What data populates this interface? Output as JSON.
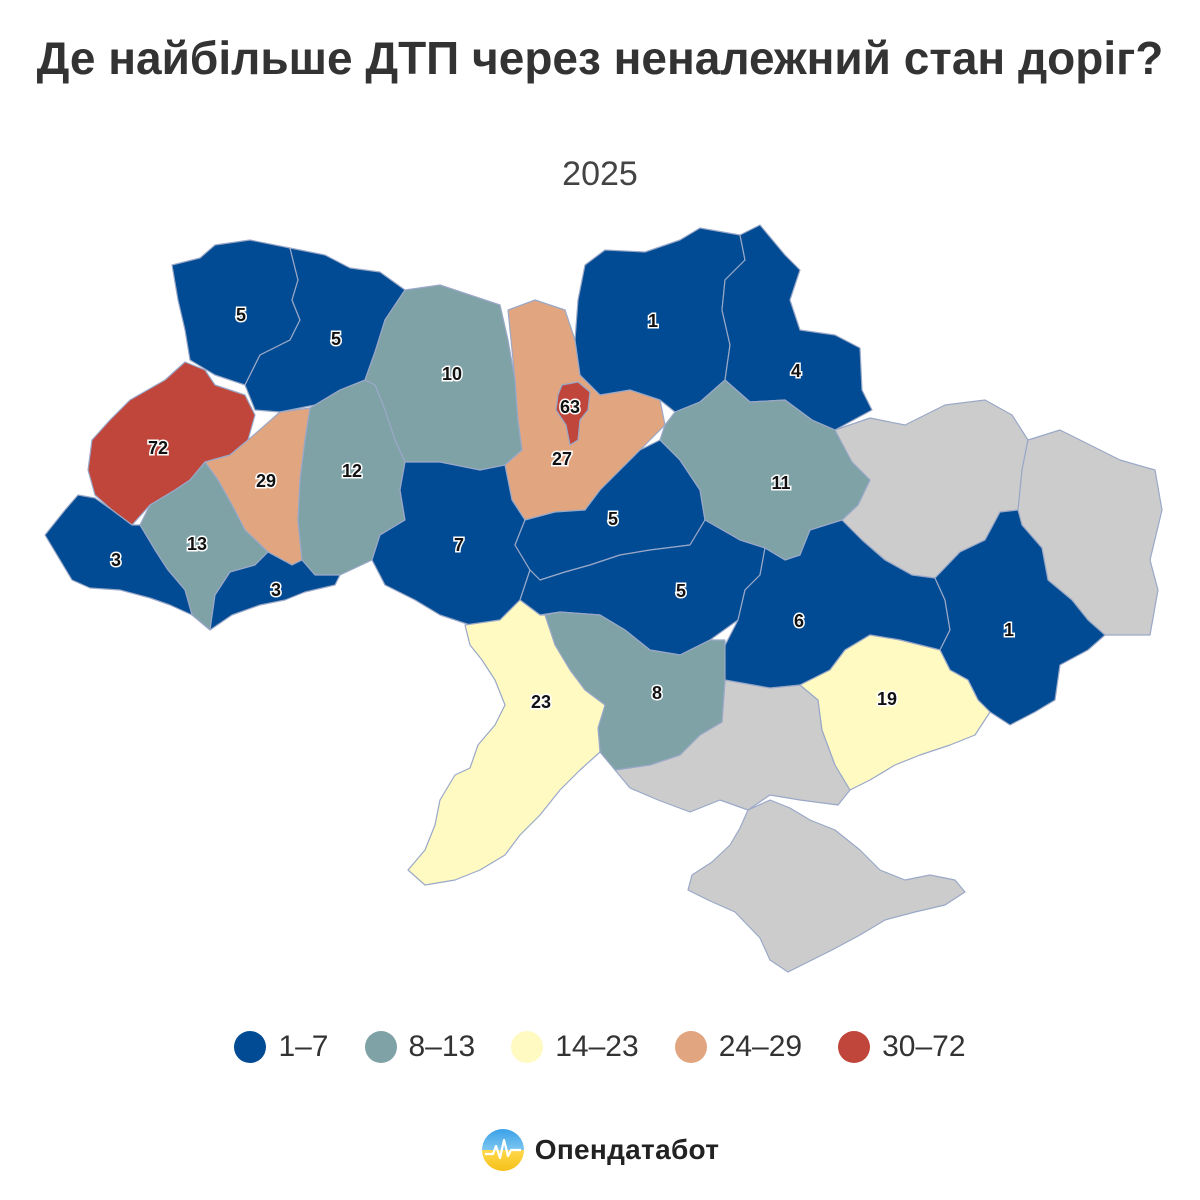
{
  "title": "Де найбільше ДТП через неналежний стан доріг?",
  "subtitle": "2025",
  "colors": {
    "1-7": "#004b93",
    "8-13": "#7fa2a6",
    "14-23": "#fffac2",
    "24-29": "#e1a57f",
    "30-72": "#c0453a",
    "nodata": "#cccccc"
  },
  "legend": [
    {
      "label": "1–7",
      "color": "#004b93"
    },
    {
      "label": "8–13",
      "color": "#7fa2a6"
    },
    {
      "label": "14–23",
      "color": "#fffac2"
    },
    {
      "label": "24–29",
      "color": "#e1a57f"
    },
    {
      "label": "30–72",
      "color": "#c0453a"
    }
  ],
  "regions": [
    {
      "id": "volyn",
      "value": "5",
      "bin": "1-7"
    },
    {
      "id": "rivne",
      "value": "5",
      "bin": "1-7"
    },
    {
      "id": "zhytomyr",
      "value": "10",
      "bin": "8-13"
    },
    {
      "id": "kyiv-oblast",
      "value": "27",
      "bin": "24-29"
    },
    {
      "id": "kyiv-city",
      "value": "63",
      "bin": "30-72"
    },
    {
      "id": "chernihiv",
      "value": "1",
      "bin": "1-7"
    },
    {
      "id": "sumy",
      "value": "4",
      "bin": "1-7"
    },
    {
      "id": "lviv",
      "value": "72",
      "bin": "30-72"
    },
    {
      "id": "ternopil",
      "value": "29",
      "bin": "24-29"
    },
    {
      "id": "khmelnytskyi",
      "value": "12",
      "bin": "8-13"
    },
    {
      "id": "ivano-frankivsk",
      "value": "13",
      "bin": "8-13"
    },
    {
      "id": "zakarpattia",
      "value": "3",
      "bin": "1-7"
    },
    {
      "id": "chernivtsi",
      "value": "3",
      "bin": "1-7"
    },
    {
      "id": "vinnytsia",
      "value": "7",
      "bin": "1-7"
    },
    {
      "id": "cherkasy",
      "value": "5",
      "bin": "1-7"
    },
    {
      "id": "poltava",
      "value": "11",
      "bin": "8-13"
    },
    {
      "id": "kirovohrad",
      "value": "5",
      "bin": "1-7"
    },
    {
      "id": "dnipro",
      "value": "6",
      "bin": "1-7"
    },
    {
      "id": "donetsk",
      "value": "1",
      "bin": "1-7"
    },
    {
      "id": "zaporizhzhia",
      "value": "19",
      "bin": "14-23"
    },
    {
      "id": "mykolaiv",
      "value": "8",
      "bin": "8-13"
    },
    {
      "id": "odesa",
      "value": "23",
      "bin": "14-23"
    },
    {
      "id": "kharkiv",
      "value": null,
      "bin": "nodata"
    },
    {
      "id": "luhansk",
      "value": null,
      "bin": "nodata"
    },
    {
      "id": "kherson",
      "value": null,
      "bin": "nodata"
    },
    {
      "id": "crimea",
      "value": null,
      "bin": "nodata"
    }
  ],
  "brand": {
    "name": "Опендатабот"
  }
}
